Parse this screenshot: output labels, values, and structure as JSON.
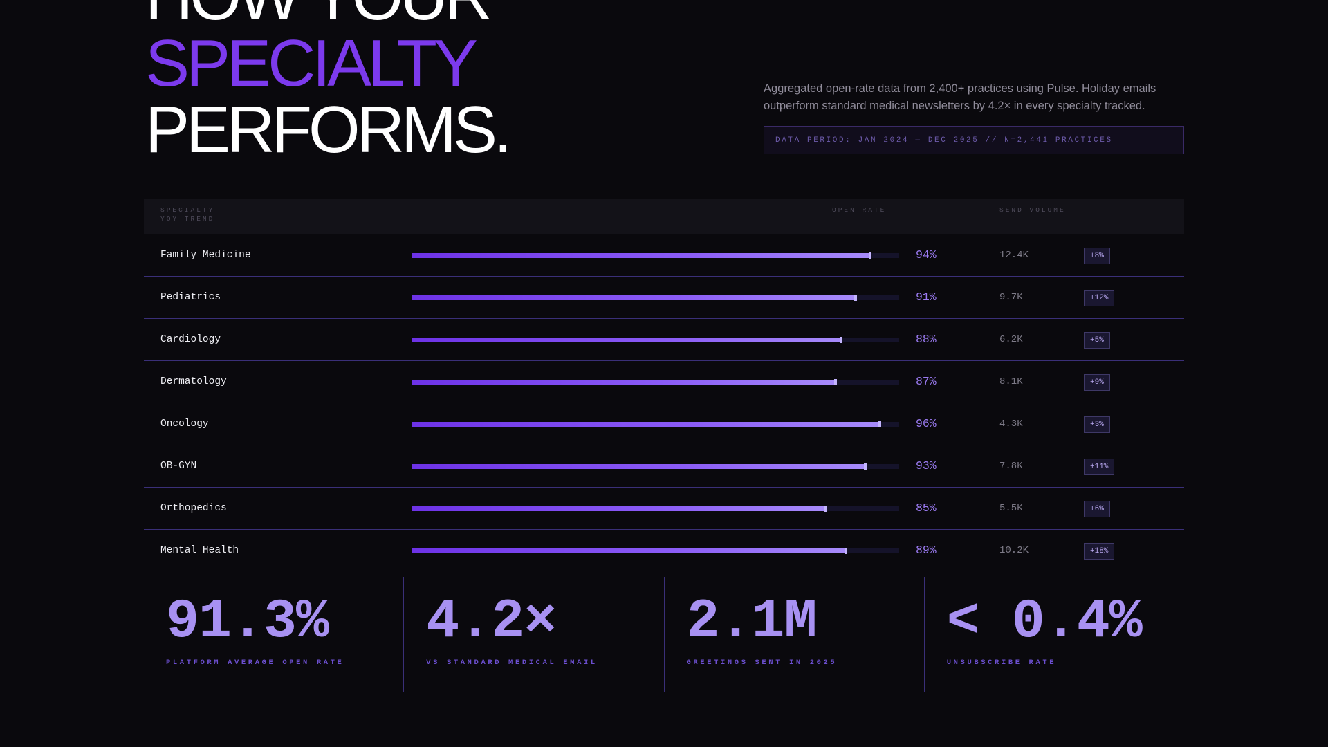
{
  "hero": {
    "headline": [
      "HOW YOUR",
      "SPECIALTY",
      "PERFORMS."
    ],
    "description": "Aggregated open-rate data from 2,400+ practices using Pulse. Holiday emails outperform standard medical newsletters by 4.2× in every specialty tracked.",
    "data_period": "DATA PERIOD: JAN 2024 — DEC 2025 // N=2,441 PRACTICES"
  },
  "table": {
    "headers": {
      "specialty": "SPECIALTY",
      "trend": "YOY TREND",
      "open_rate": "OPEN RATE",
      "send_volume": "SEND VOLUME"
    }
  },
  "chart_data": {
    "type": "bar",
    "orientation": "horizontal",
    "xlim": [
      0,
      100
    ],
    "categories": [
      "Family Medicine",
      "Pediatrics",
      "Cardiology",
      "Dermatology",
      "Oncology",
      "OB-GYN",
      "Orthopedics",
      "Mental Health"
    ],
    "series": [
      {
        "values": [
          94,
          91,
          88,
          87,
          96,
          93,
          85,
          89
        ],
        "labels": [
          "94%",
          "91%",
          "88%",
          "87%",
          "96%",
          "93%",
          "85%",
          "89%"
        ]
      }
    ],
    "send_volume": [
      "12.4K",
      "9.7K",
      "6.2K",
      "8.1K",
      "4.3K",
      "7.8K",
      "5.5K",
      "10.2K"
    ],
    "yoy_trend": [
      "+8%",
      "+12%",
      "+5%",
      "+9%",
      "+3%",
      "+11%",
      "+6%",
      "+18%"
    ]
  },
  "stats": [
    {
      "value": "91.3%",
      "label": "PLATFORM AVERAGE OPEN RATE"
    },
    {
      "value": "4.2×",
      "label": "VS STANDARD MEDICAL EMAIL"
    },
    {
      "value": "2.1M",
      "label": "GREETINGS SENT IN 2025"
    },
    {
      "value": "< 0.4%",
      "label": "UNSUBSCRIBE RATE"
    }
  ],
  "colors": {
    "background": "#0a090d",
    "accent": "#7c3aed",
    "accent_light": "#a891f2",
    "bar_start": "#6d32e6",
    "bar_end": "#a78bfa",
    "row_divider": "#3a2f78"
  }
}
